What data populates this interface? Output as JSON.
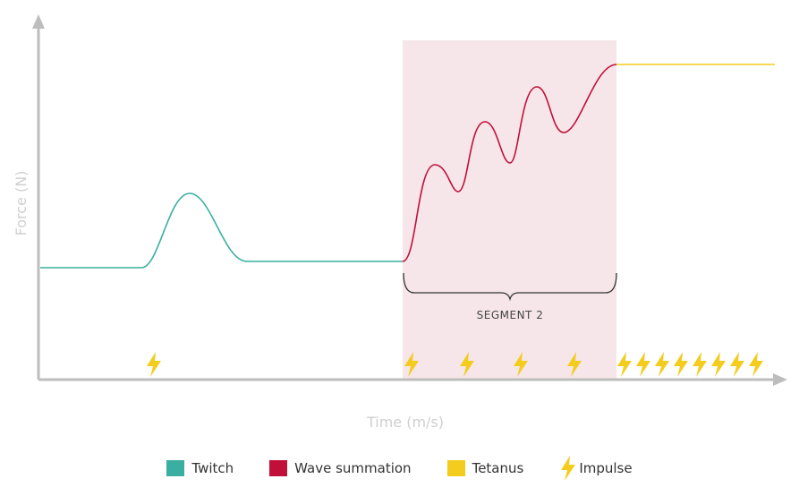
{
  "axes": {
    "ylabel": "Force (N)",
    "xlabel": "Time (m/s)",
    "color": "#bdbdbd"
  },
  "segment": {
    "label": "SEGMENT 2",
    "fill": "#f6e6e9",
    "brace_color": "#333333"
  },
  "series": [
    {
      "name": "Twitch",
      "color": "#3aafa1",
      "icon": "teal-square"
    },
    {
      "name": "Wave summation",
      "color": "#c0103a",
      "icon": "red-square"
    },
    {
      "name": "Tetanus",
      "color": "#f3cc1e",
      "icon": "yellow-square"
    }
  ],
  "impulse": {
    "name": "Impulse",
    "color": "#f3cc1e",
    "icon": "lightning-bolt-icon"
  },
  "impulses": {
    "twitch_count": 1,
    "summation_count": 4,
    "tetanus_count": 8
  }
}
